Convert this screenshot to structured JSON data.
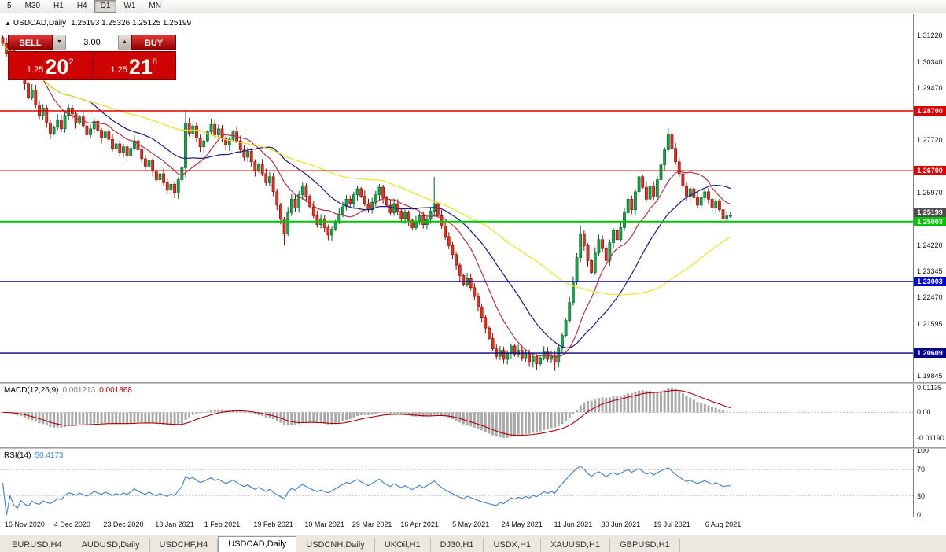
{
  "toolbar": {
    "items": [
      "5",
      "M30",
      "H1",
      "H4",
      "D1",
      "W1",
      "MN"
    ],
    "active": "D1"
  },
  "chart_header": {
    "icon": "▲",
    "symbol": "USDCAD,Daily",
    "ohlc": "1.25193 1.25326 1.25125 1.25199"
  },
  "trade_panel": {
    "sell_label": "SELL",
    "buy_label": "BUY",
    "volume": "3.00",
    "volume_down_glyph": "▼",
    "volume_up_glyph": "▲",
    "sell_price": {
      "base": "1.25",
      "big": "20",
      "sup": "2"
    },
    "buy_price": {
      "base": "1.25",
      "big": "21",
      "sup": "8"
    }
  },
  "tabs": {
    "items": [
      "EURUSD,H4",
      "AUDUSD,Daily",
      "USDCHF,H4",
      "USDCAD,Daily",
      "USDCNH,Daily",
      "UKOil,H1",
      "DJ30,H1",
      "USDX,H1",
      "XAUUSD,H1",
      "GBPUSD,H1"
    ],
    "active": "USDCAD,Daily"
  },
  "chart_data": {
    "type": "candlestick",
    "symbol": "USDCAD",
    "timeframe": "Daily",
    "price_axis": {
      "min": 1.1964,
      "max": 1.3193,
      "grid_labels": [
        {
          "text": "1.31220",
          "value": 1.3122
        },
        {
          "text": "1.30340",
          "value": 1.3034
        },
        {
          "text": "1.29470",
          "value": 1.2947
        },
        {
          "text": "1.27720",
          "value": 1.2772
        },
        {
          "text": "1.25970",
          "value": 1.2597
        },
        {
          "text": "1.24220",
          "value": 1.2422
        },
        {
          "text": "1.23345",
          "value": 1.23345
        },
        {
          "text": "1.22470",
          "value": 1.2247
        },
        {
          "text": "1.21595",
          "value": 1.21595
        },
        {
          "text": "1.19845",
          "value": 1.19845
        }
      ]
    },
    "levels": [
      {
        "price": 1.287,
        "label": "1.28700",
        "color": "#dd0000",
        "width": 1.4
      },
      {
        "price": 1.267,
        "label": "1.26700",
        "color": "#dd0000",
        "width": 1.4
      },
      {
        "price": 1.25003,
        "label": "1.25003",
        "color": "#00c400",
        "width": 2
      },
      {
        "price": 1.23003,
        "label": "1.23003",
        "color": "#0000d2",
        "width": 1.4
      },
      {
        "price": 1.20609,
        "label": "1.20609",
        "color": "#000089",
        "width": 1.4
      }
    ],
    "current_price": {
      "price": 1.25199,
      "label": "1.25199",
      "color": "#4d4d4d"
    },
    "candles": {
      "first_open": 1.3115,
      "closes": [
        1.3095,
        1.306,
        1.3075,
        1.303,
        1.299,
        1.301,
        1.296,
        1.2915,
        1.294,
        1.289,
        1.2855,
        1.288,
        1.283,
        1.2795,
        1.2815,
        1.284,
        1.281,
        1.2855,
        1.288,
        1.286,
        1.283,
        1.285,
        1.282,
        1.279,
        1.281,
        1.2835,
        1.2805,
        1.278,
        1.28,
        1.2775,
        1.2745,
        1.276,
        1.273,
        1.275,
        1.272,
        1.2745,
        1.277,
        1.274,
        1.271,
        1.2685,
        1.2705,
        1.267,
        1.264,
        1.266,
        1.263,
        1.2605,
        1.2625,
        1.2595,
        1.264,
        1.268,
        1.283,
        1.2795,
        1.282,
        1.278,
        1.275,
        1.277,
        1.28,
        1.2825,
        1.279,
        1.281,
        1.278,
        1.2755,
        1.2775,
        1.28,
        1.277,
        1.274,
        1.2715,
        1.2735,
        1.27,
        1.267,
        1.269,
        1.266,
        1.263,
        1.265,
        1.26,
        1.2555,
        1.251,
        1.246,
        1.253,
        1.2575,
        1.2545,
        1.259,
        1.262,
        1.2585,
        1.255,
        1.252,
        1.249,
        1.251,
        1.248,
        1.2455,
        1.2475,
        1.25,
        1.2525,
        1.255,
        1.2575,
        1.256,
        1.259,
        1.261,
        1.2585,
        1.256,
        1.254,
        1.2565,
        1.259,
        1.2615,
        1.258,
        1.2555,
        1.253,
        1.256,
        1.2535,
        1.251,
        1.253,
        1.2505,
        1.248,
        1.25,
        1.252,
        1.249,
        1.251,
        1.2535,
        1.256,
        1.252,
        1.2485,
        1.245,
        1.242,
        1.239,
        1.2355,
        1.232,
        1.229,
        1.231,
        1.228,
        1.225,
        1.2215,
        1.218,
        1.2145,
        1.211,
        1.2075,
        1.205,
        1.207,
        1.204,
        1.206,
        1.2085,
        1.2055,
        1.207,
        1.2045,
        1.206,
        1.203,
        1.205,
        1.2025,
        1.2045,
        1.2065,
        1.204,
        1.2055,
        1.203,
        1.208,
        1.212,
        1.217,
        1.223,
        1.23,
        1.238,
        1.246,
        1.242,
        1.237,
        1.233,
        1.2395,
        1.244,
        1.241,
        1.237,
        1.243,
        1.247,
        1.244,
        1.248,
        1.253,
        1.2575,
        1.254,
        1.26,
        1.265,
        1.2615,
        1.2575,
        1.262,
        1.2585,
        1.264,
        1.269,
        1.274,
        1.279,
        1.2745,
        1.27,
        1.266,
        1.262,
        1.2585,
        1.261,
        1.258,
        1.2555,
        1.258,
        1.26,
        1.2575,
        1.2545,
        1.257,
        1.254,
        1.251,
        1.2519,
        1.25199
      ],
      "specials": {
        "50": {
          "h": 1.2872,
          "l": 1.2648
        },
        "77": {
          "l": 1.242
        },
        "118": {
          "h": 1.265
        },
        "151": {
          "l": 1.2002
        },
        "158": {
          "h": 1.2487
        },
        "182": {
          "h": 1.2812
        },
        "199": {
          "o": 1.25193,
          "h": 1.25326,
          "l": 1.25125
        }
      }
    },
    "ma": [
      {
        "period": 12,
        "color": "#b03545"
      },
      {
        "period": 25,
        "color": "#1a1a80"
      },
      {
        "period": 55,
        "color": "#f0df20"
      }
    ],
    "macd": {
      "label": "MACD(12,26,9)",
      "value_main": "0.001213",
      "value_signal": "0.001868",
      "fast": 12,
      "slow": 26,
      "signal": 9,
      "ylim": [
        -0.01617,
        0.01317
      ],
      "axis_labels": [
        {
          "text": "0.01135",
          "value": 0.01135
        },
        {
          "text": "0.00",
          "value": 0
        },
        {
          "text": "-0.01190",
          "value": -0.0119
        }
      ],
      "hist_color": "#a9a9a9",
      "signal_color": "#b00000"
    },
    "rsi": {
      "label": "RSI(14)",
      "value_text": "50.4173",
      "period": 14,
      "ylim": [
        -2,
        102
      ],
      "axis_labels": [
        {
          "text": "100",
          "value": 100
        },
        {
          "text": "70",
          "value": 70
        },
        {
          "text": "30",
          "value": 30
        },
        {
          "text": "0",
          "value": 0
        }
      ],
      "levels": [
        70,
        30
      ],
      "color": "#4a86c8"
    },
    "dates": [
      [
        "16 Nov 2020",
        6
      ],
      [
        "4 Dec 2020",
        19
      ],
      [
        "23 Dec 2020",
        33
      ],
      [
        "13 Jan 2021",
        47
      ],
      [
        "1 Feb 2021",
        60
      ],
      [
        "19 Feb 2021",
        74
      ],
      [
        "10 Mar 2021",
        88
      ],
      [
        "29 Mar 2021",
        101
      ],
      [
        "16 Apr 2021",
        114
      ],
      [
        "5 May 2021",
        128
      ],
      [
        "24 May 2021",
        142
      ],
      [
        "11 Jun 2021",
        156
      ],
      [
        "30 Jun 2021",
        169
      ],
      [
        "19 Jul 2021",
        183
      ],
      [
        "6 Aug 2021",
        197
      ]
    ],
    "colors": {
      "bull": "#18a44c",
      "bull_stroke": "#0a5c2a",
      "bear": "#e23222",
      "bear_stroke": "#7e0d05"
    }
  }
}
